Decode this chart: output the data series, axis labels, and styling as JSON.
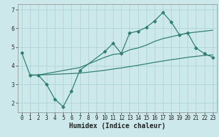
{
  "lines": [
    {
      "x": [
        0,
        1,
        2,
        3,
        4,
        5,
        6,
        7,
        10,
        11,
        12,
        13,
        14,
        15,
        16,
        17,
        18,
        19,
        20,
        21,
        22,
        23
      ],
      "y": [
        4.7,
        3.5,
        3.5,
        3.0,
        2.2,
        1.8,
        2.65,
        3.75,
        4.75,
        5.2,
        4.65,
        5.75,
        5.85,
        6.05,
        6.4,
        6.85,
        6.35,
        5.65,
        5.75,
        4.95,
        4.65,
        4.45
      ],
      "marker": true
    },
    {
      "x": [
        1,
        2,
        7,
        10,
        11,
        12,
        13,
        14,
        15,
        16,
        17,
        18,
        19,
        20,
        21,
        22,
        23
      ],
      "y": [
        3.5,
        3.5,
        3.9,
        4.45,
        4.6,
        4.65,
        4.85,
        4.95,
        5.1,
        5.3,
        5.45,
        5.55,
        5.65,
        5.75,
        5.8,
        5.85,
        5.9
      ],
      "marker": false
    },
    {
      "x": [
        1,
        2,
        7,
        10,
        11,
        12,
        13,
        14,
        15,
        16,
        17,
        18,
        19,
        20,
        21,
        22,
        23
      ],
      "y": [
        3.5,
        3.5,
        3.6,
        3.75,
        3.82,
        3.88,
        3.95,
        4.02,
        4.1,
        4.18,
        4.25,
        4.32,
        4.38,
        4.45,
        4.5,
        4.55,
        4.58
      ],
      "marker": false
    }
  ],
  "color": "#2e7d6e",
  "bg_color": "#cce8ea",
  "grid_color": "#a8cfd2",
  "xlabel": "Humidex (Indice chaleur)",
  "xlim": [
    -0.5,
    23.5
  ],
  "ylim": [
    1.5,
    7.3
  ],
  "yticks": [
    2,
    3,
    4,
    5,
    6,
    7
  ],
  "xticks": [
    0,
    1,
    2,
    3,
    4,
    5,
    6,
    7,
    8,
    9,
    10,
    11,
    12,
    13,
    14,
    15,
    16,
    17,
    18,
    19,
    20,
    21,
    22,
    23
  ],
  "tick_fontsize": 5.5,
  "xlabel_fontsize": 7,
  "marker_size": 2.5,
  "linewidth": 0.9
}
